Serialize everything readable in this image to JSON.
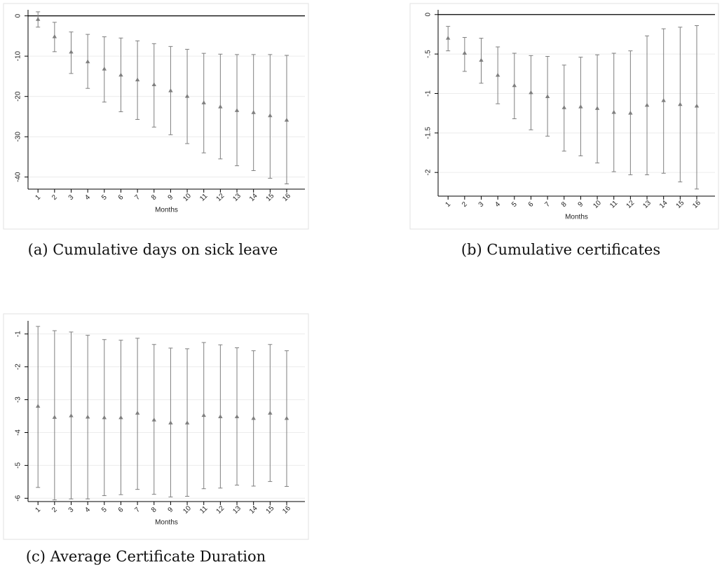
{
  "chart_data": [
    {
      "type": "errorbar",
      "caption": "(a) Cumulative days on sick leave",
      "xlabel": "Months",
      "categories": [
        "1",
        "2",
        "3",
        "4",
        "5",
        "6",
        "7",
        "8",
        "9",
        "10",
        "11",
        "12",
        "13",
        "14",
        "15",
        "16"
      ],
      "values": [
        -0.9,
        -5.2,
        -9.0,
        -11.4,
        -13.2,
        -14.7,
        -15.9,
        -17.1,
        -18.6,
        -20.0,
        -21.6,
        -22.6,
        -23.5,
        -24.0,
        -24.8,
        -25.9
      ],
      "lower": [
        -2.8,
        -8.9,
        -14.3,
        -18.0,
        -21.4,
        -23.8,
        -25.7,
        -27.6,
        -29.5,
        -31.7,
        -34.0,
        -35.5,
        -37.2,
        -38.4,
        -40.3,
        -41.7
      ],
      "upper": [
        1.0,
        -1.6,
        -4.0,
        -4.6,
        -5.2,
        -5.5,
        -6.2,
        -6.9,
        -7.6,
        -8.3,
        -9.3,
        -9.5,
        -9.6,
        -9.6,
        -9.6,
        -9.8
      ],
      "color": "#7f7f7f",
      "ylim": [
        -43,
        1.5
      ],
      "yticks": [
        0,
        -10,
        -20,
        -30,
        -40
      ],
      "grid": true,
      "hline": 0
    },
    {
      "type": "errorbar",
      "caption": "(b) Cumulative certificates",
      "xlabel": "Months",
      "categories": [
        "1",
        "2",
        "3",
        "4",
        "5",
        "6",
        "7",
        "8",
        "9",
        "10",
        "11",
        "12",
        "13",
        "14",
        "15",
        "16"
      ],
      "values": [
        -0.3,
        -0.49,
        -0.58,
        -0.77,
        -0.9,
        -0.99,
        -1.04,
        -1.18,
        -1.17,
        -1.19,
        -1.24,
        -1.25,
        -1.15,
        -1.09,
        -1.14,
        -1.16
      ],
      "lower": [
        -0.46,
        -0.72,
        -0.87,
        -1.13,
        -1.32,
        -1.46,
        -1.54,
        -1.73,
        -1.79,
        -1.88,
        -1.99,
        -2.03,
        -2.03,
        -2.01,
        -2.12,
        -2.21
      ],
      "upper": [
        -0.15,
        -0.29,
        -0.3,
        -0.41,
        -0.49,
        -0.52,
        -0.53,
        -0.64,
        -0.54,
        -0.51,
        -0.49,
        -0.46,
        -0.27,
        -0.18,
        -0.16,
        -0.14
      ],
      "color": "#7f7f7f",
      "ylim": [
        -2.3,
        0.06
      ],
      "yticks": [
        0,
        {
          "value": -0.5,
          "label": "-.5"
        },
        -1,
        {
          "value": -1.5,
          "label": "-1.5"
        },
        -2
      ],
      "grid": true,
      "hline": 0
    },
    {
      "type": "errorbar",
      "caption": "(c) Average Certificate Duration",
      "xlabel": "Months",
      "categories": [
        "1",
        "2",
        "3",
        "4",
        "5",
        "6",
        "7",
        "8",
        "9",
        "10",
        "11",
        "12",
        "13",
        "14",
        "15",
        "16"
      ],
      "values": [
        -3.2,
        -3.54,
        -3.49,
        -3.53,
        -3.55,
        -3.55,
        -3.41,
        -3.62,
        -3.71,
        -3.71,
        -3.48,
        -3.52,
        -3.52,
        -3.57,
        -3.41,
        -3.57
      ],
      "lower": [
        -5.67,
        -6.05,
        -6.02,
        -6.02,
        -5.92,
        -5.89,
        -5.73,
        -5.88,
        -5.96,
        -5.94,
        -5.71,
        -5.69,
        -5.6,
        -5.63,
        -5.49,
        -5.64
      ],
      "upper": [
        -0.77,
        -0.9,
        -0.94,
        -1.04,
        -1.17,
        -1.19,
        -1.13,
        -1.32,
        -1.43,
        -1.45,
        -1.26,
        -1.33,
        -1.42,
        -1.51,
        -1.32,
        -1.51
      ],
      "color": "#7f7f7f",
      "ylim": [
        -6.1,
        -0.6
      ],
      "yticks": [
        -1,
        -2,
        -3,
        -4,
        -5,
        -6
      ],
      "grid": true
    }
  ]
}
